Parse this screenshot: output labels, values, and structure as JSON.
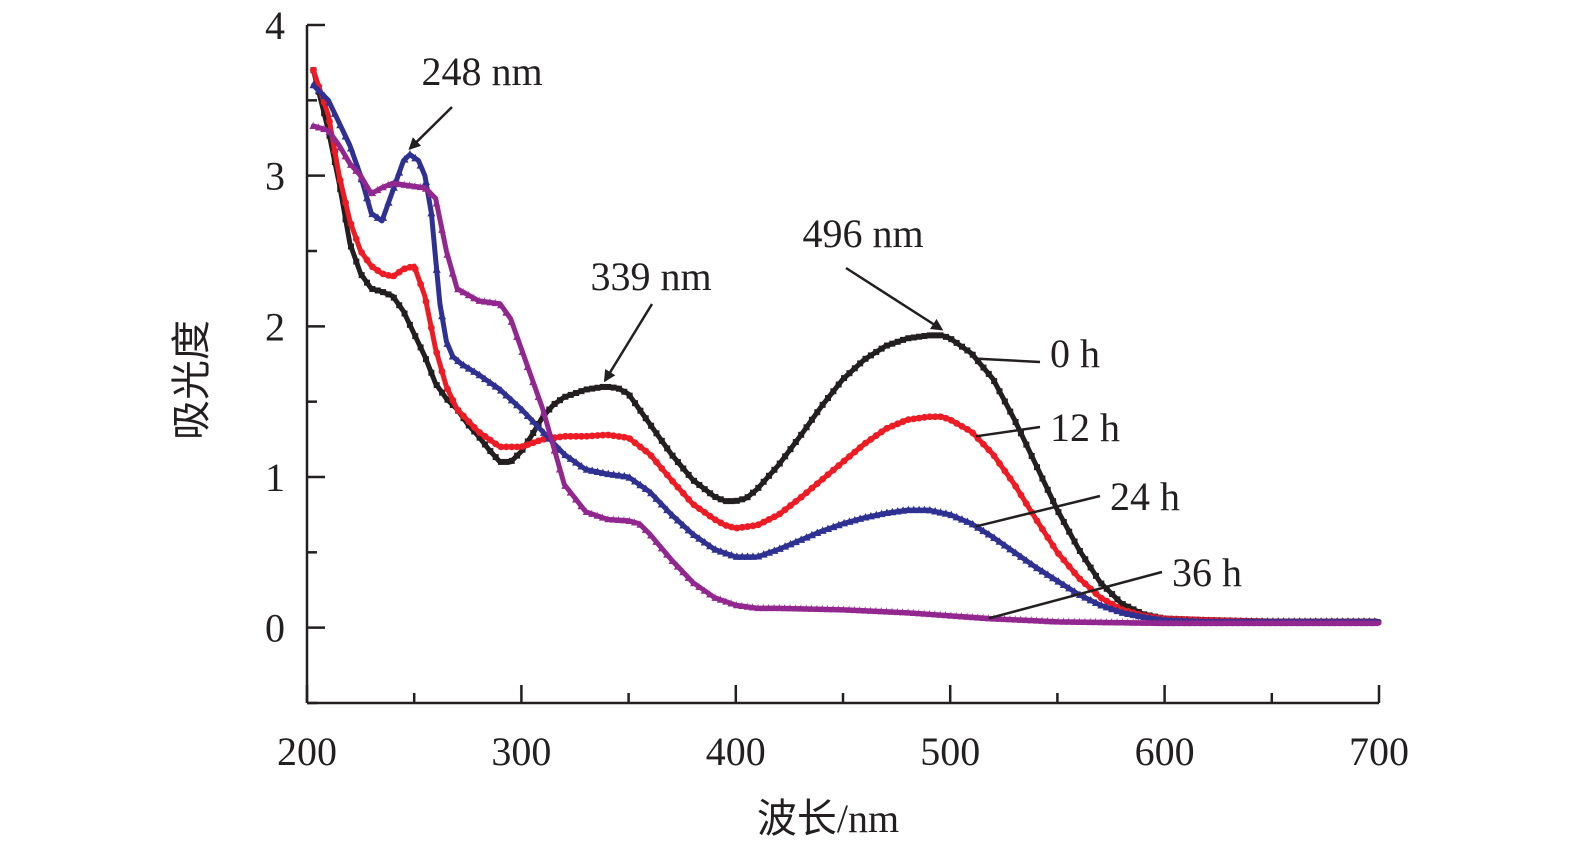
{
  "chart_data": {
    "type": "line",
    "title": "",
    "xlabel": "波长/nm",
    "ylabel": "吸光度",
    "xlim": [
      200,
      700
    ],
    "ylim": [
      -0.5,
      4
    ],
    "xticks": [
      200,
      300,
      400,
      500,
      600,
      700
    ],
    "yticks": [
      0,
      1,
      2,
      3,
      4
    ],
    "grid": false,
    "series": [
      {
        "name": "0 h",
        "color": "#231f20",
        "marker": "square",
        "x": [
          203,
          210,
          215,
          220,
          225,
          230,
          235,
          240,
          245,
          250,
          255,
          260,
          265,
          270,
          275,
          280,
          285,
          290,
          295,
          300,
          305,
          310,
          315,
          320,
          330,
          339,
          345,
          350,
          360,
          370,
          380,
          390,
          395,
          400,
          405,
          410,
          420,
          430,
          440,
          450,
          460,
          470,
          480,
          490,
          496,
          500,
          510,
          520,
          530,
          540,
          550,
          560,
          570,
          580,
          590,
          600,
          620,
          650,
          680,
          700
        ],
        "y": [
          3.7,
          3.3,
          2.95,
          2.55,
          2.35,
          2.25,
          2.23,
          2.2,
          2.1,
          1.95,
          1.8,
          1.62,
          1.52,
          1.45,
          1.35,
          1.27,
          1.18,
          1.1,
          1.1,
          1.17,
          1.28,
          1.4,
          1.48,
          1.53,
          1.58,
          1.6,
          1.59,
          1.55,
          1.35,
          1.15,
          0.98,
          0.87,
          0.84,
          0.84,
          0.86,
          0.92,
          1.08,
          1.27,
          1.47,
          1.65,
          1.78,
          1.87,
          1.92,
          1.94,
          1.94,
          1.92,
          1.82,
          1.65,
          1.38,
          1.08,
          0.78,
          0.52,
          0.3,
          0.16,
          0.09,
          0.06,
          0.05,
          0.04,
          0.04,
          0.04
        ]
      },
      {
        "name": "12 h",
        "color": "#ed1c24",
        "marker": "circle",
        "x": [
          203,
          210,
          215,
          220,
          225,
          230,
          235,
          240,
          245,
          250,
          255,
          260,
          265,
          270,
          280,
          290,
          300,
          310,
          320,
          330,
          340,
          350,
          360,
          370,
          380,
          390,
          395,
          400,
          410,
          420,
          430,
          440,
          450,
          460,
          470,
          480,
          490,
          496,
          500,
          510,
          520,
          530,
          540,
          550,
          560,
          570,
          580,
          590,
          600,
          620,
          650,
          680,
          700
        ],
        "y": [
          3.7,
          3.4,
          3.0,
          2.7,
          2.5,
          2.4,
          2.35,
          2.33,
          2.38,
          2.4,
          2.2,
          1.85,
          1.6,
          1.45,
          1.3,
          1.2,
          1.2,
          1.25,
          1.27,
          1.27,
          1.28,
          1.26,
          1.15,
          0.98,
          0.82,
          0.72,
          0.68,
          0.66,
          0.68,
          0.75,
          0.86,
          0.98,
          1.1,
          1.22,
          1.32,
          1.38,
          1.4,
          1.4,
          1.38,
          1.3,
          1.15,
          0.95,
          0.72,
          0.5,
          0.33,
          0.2,
          0.12,
          0.08,
          0.06,
          0.05,
          0.04,
          0.04,
          0.04
        ]
      },
      {
        "name": "24 h",
        "color": "#2e3192",
        "marker": "triangle",
        "x": [
          203,
          210,
          215,
          220,
          225,
          230,
          235,
          240,
          245,
          248,
          252,
          255,
          258,
          260,
          262,
          265,
          268,
          272,
          280,
          290,
          300,
          310,
          320,
          330,
          340,
          350,
          360,
          370,
          380,
          390,
          400,
          410,
          420,
          430,
          440,
          450,
          460,
          470,
          480,
          490,
          500,
          510,
          520,
          530,
          540,
          550,
          560,
          570,
          580,
          590,
          600,
          620,
          650,
          680,
          700
        ],
        "y": [
          3.6,
          3.5,
          3.35,
          3.2,
          3.0,
          2.75,
          2.7,
          2.9,
          3.1,
          3.14,
          3.1,
          3.0,
          2.75,
          2.45,
          2.15,
          1.9,
          1.8,
          1.75,
          1.68,
          1.58,
          1.45,
          1.3,
          1.15,
          1.05,
          1.02,
          1.0,
          0.9,
          0.75,
          0.62,
          0.52,
          0.47,
          0.47,
          0.52,
          0.58,
          0.64,
          0.69,
          0.73,
          0.76,
          0.78,
          0.78,
          0.75,
          0.69,
          0.6,
          0.5,
          0.4,
          0.31,
          0.22,
          0.15,
          0.1,
          0.07,
          0.05,
          0.04,
          0.04,
          0.04,
          0.04
        ]
      },
      {
        "name": "36 h",
        "color": "#92278f",
        "marker": "star",
        "x": [
          203,
          210,
          215,
          220,
          225,
          230,
          235,
          240,
          245,
          250,
          255,
          260,
          265,
          270,
          280,
          290,
          295,
          300,
          305,
          310,
          315,
          320,
          330,
          340,
          350,
          355,
          360,
          370,
          380,
          390,
          400,
          410,
          420,
          450,
          480,
          500,
          520,
          550,
          600,
          650,
          700
        ],
        "y": [
          3.33,
          3.3,
          3.2,
          3.08,
          3.0,
          2.88,
          2.92,
          2.95,
          2.94,
          2.93,
          2.92,
          2.85,
          2.5,
          2.25,
          2.17,
          2.15,
          2.05,
          1.85,
          1.65,
          1.45,
          1.2,
          0.95,
          0.77,
          0.72,
          0.71,
          0.69,
          0.62,
          0.45,
          0.3,
          0.2,
          0.15,
          0.13,
          0.13,
          0.12,
          0.1,
          0.08,
          0.06,
          0.04,
          0.03,
          0.03,
          0.03
        ]
      }
    ],
    "annotations": [
      {
        "text": "248 nm",
        "x": 248,
        "y": 3.14
      },
      {
        "text": "339 nm",
        "x": 339,
        "y": 1.6
      },
      {
        "text": "496 nm",
        "x": 496,
        "y": 1.94
      }
    ],
    "series_labels": [
      {
        "text": "0 h",
        "series": 0,
        "x": 512
      },
      {
        "text": "12 h",
        "series": 1,
        "x": 512
      },
      {
        "text": "24 h",
        "series": 2,
        "x": 512
      },
      {
        "text": "36 h",
        "series": 3,
        "x": 518
      }
    ]
  }
}
